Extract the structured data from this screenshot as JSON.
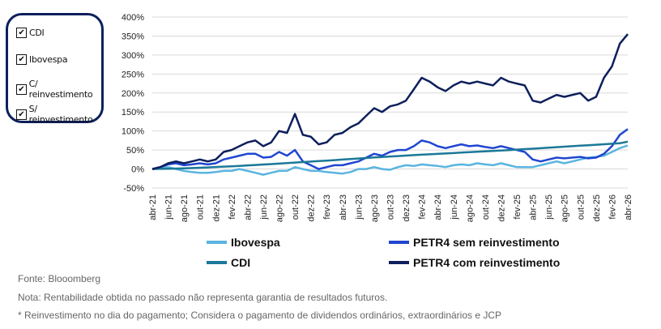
{
  "filters": [
    {
      "label": "CDI",
      "checked": true
    },
    {
      "label": "Ibovespa",
      "checked": true
    },
    {
      "label": "C/ reinvestimento",
      "checked": true
    },
    {
      "label": "S/ reinvestimento",
      "checked": true
    }
  ],
  "chart_data": {
    "type": "line",
    "ylim": [
      -50,
      400
    ],
    "yticks": [
      "400%",
      "350%",
      "300%",
      "250%",
      "200%",
      "150%",
      "100%",
      "50%",
      "0%",
      "-50%"
    ],
    "ytick_values": [
      400,
      350,
      300,
      250,
      200,
      150,
      100,
      50,
      0,
      -50
    ],
    "xtick_labels": [
      "abr-21",
      "jun-21",
      "ago-21",
      "out-21",
      "dez-21",
      "fev-22",
      "abr-22",
      "jun-22",
      "ago-22",
      "out-22",
      "dez-22",
      "fev-23",
      "abr-23",
      "jun-23",
      "ago-23",
      "out-23",
      "dez-23",
      "fev-24",
      "abr-24",
      "jun-24",
      "ago-24",
      "out-24",
      "dez-24",
      "fev-25",
      "abr-25",
      "jun-25",
      "ago-25",
      "out-25",
      "dez-25",
      "fev-26",
      "abr-26"
    ],
    "x_start": "abr-21",
    "x_step": "monthly",
    "grid": true,
    "legend": "bottom",
    "series": [
      {
        "name": "Ibovespa",
        "color": "#5ab4e0",
        "values": [
          0,
          2,
          5,
          0,
          -5,
          -8,
          -10,
          -10,
          -8,
          -5,
          -5,
          0,
          -5,
          -10,
          -15,
          -10,
          -5,
          -5,
          5,
          0,
          -5,
          -5,
          -8,
          -10,
          -12,
          -8,
          0,
          0,
          5,
          0,
          -2,
          5,
          10,
          8,
          12,
          10,
          8,
          5,
          10,
          12,
          10,
          15,
          12,
          10,
          15,
          10,
          5,
          5,
          5,
          10,
          15,
          20,
          15,
          20,
          25,
          30,
          32,
          35,
          45,
          55,
          62
        ]
      },
      {
        "name": "PETR4 sem reinvestimento",
        "color": "#2046d0",
        "values": [
          0,
          5,
          12,
          15,
          10,
          12,
          15,
          12,
          15,
          25,
          30,
          35,
          40,
          40,
          30,
          32,
          45,
          35,
          50,
          20,
          10,
          0,
          5,
          10,
          10,
          15,
          20,
          30,
          40,
          35,
          45,
          50,
          50,
          60,
          75,
          70,
          60,
          55,
          60,
          65,
          60,
          62,
          58,
          55,
          60,
          55,
          50,
          45,
          25,
          20,
          25,
          30,
          28,
          30,
          32,
          28,
          30,
          40,
          60,
          90,
          105
        ]
      },
      {
        "name": "CDI",
        "color": "#1b7898",
        "values": [
          0,
          0.3,
          0.7,
          1.2,
          1.8,
          2.5,
          3.3,
          4.2,
          5.2,
          6.2,
          7.2,
          8.3,
          9.4,
          10.5,
          11.8,
          13,
          14.3,
          15.6,
          16.9,
          18.2,
          19.5,
          20.8,
          22.1,
          23.4,
          24.8,
          26.2,
          27.6,
          29,
          30.3,
          31.6,
          32.9,
          34.1,
          35.3,
          36.5,
          37.6,
          38.7,
          39.8,
          40.9,
          42,
          43.1,
          44.2,
          45.3,
          46.4,
          47.5,
          48.7,
          49.9,
          51.1,
          52.3,
          53.5,
          54.8,
          56.1,
          57.4,
          58.7,
          60,
          61.3,
          62.6,
          63.9,
          65.2,
          66.5,
          67.8,
          72
        ]
      },
      {
        "name": "PETR4 com reinvestimento",
        "color": "#0d1f5c",
        "values": [
          0,
          5,
          15,
          20,
          15,
          20,
          25,
          20,
          25,
          45,
          50,
          60,
          70,
          75,
          60,
          70,
          100,
          95,
          145,
          90,
          85,
          65,
          70,
          90,
          95,
          110,
          120,
          140,
          160,
          150,
          165,
          170,
          180,
          210,
          240,
          230,
          215,
          205,
          220,
          230,
          225,
          230,
          225,
          220,
          240,
          230,
          225,
          220,
          180,
          175,
          185,
          195,
          190,
          195,
          200,
          180,
          190,
          240,
          270,
          330,
          355
        ]
      }
    ]
  },
  "notes": [
    "Fonte: Blooomberg",
    "Nota: Rentabilidade obtida no passado não representa garantia de resultados futuros.",
    "* Reinvestimento no dia do pagamento; Considera o pagamento de dividendos ordinários, extraordinários e JCP"
  ]
}
